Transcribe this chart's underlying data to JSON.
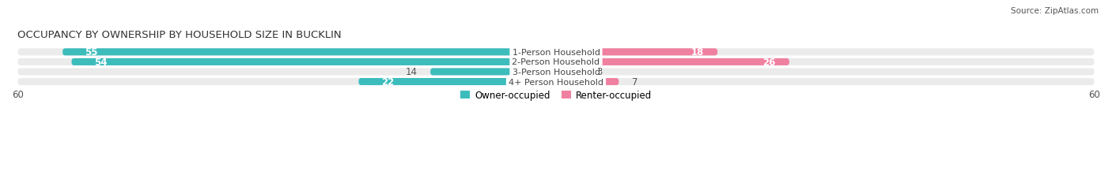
{
  "title": "OCCUPANCY BY OWNERSHIP BY HOUSEHOLD SIZE IN BUCKLIN",
  "source": "Source: ZipAtlas.com",
  "categories": [
    "1-Person Household",
    "2-Person Household",
    "3-Person Household",
    "4+ Person Household"
  ],
  "owner_values": [
    55,
    54,
    14,
    22
  ],
  "renter_values": [
    18,
    26,
    3,
    7
  ],
  "owner_color": "#3DBCBC",
  "renter_color": "#F080A0",
  "bar_bg_color": "#EBEBEB",
  "axis_limit": 60,
  "title_fontsize": 9.5,
  "source_fontsize": 7.5,
  "bar_label_fontsize": 8.5,
  "category_fontsize": 8,
  "legend_fontsize": 8.5,
  "axis_label_fontsize": 8.5,
  "background_color": "#FFFFFF",
  "text_dark": "#555555",
  "text_white": "#FFFFFF"
}
